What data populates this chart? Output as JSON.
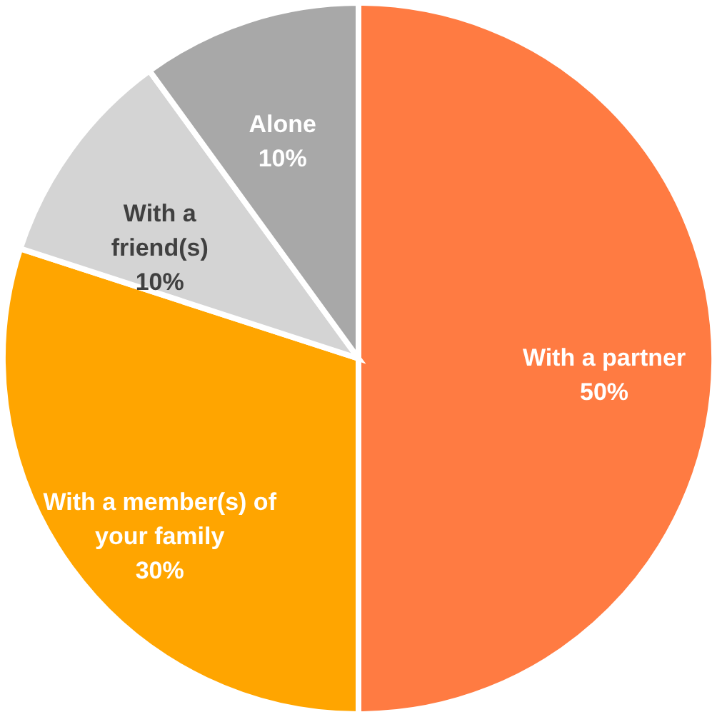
{
  "chart_data": {
    "type": "pie",
    "categories": [
      "With a partner",
      "With a member(s) of your family",
      "With a friend(s)",
      "Alone"
    ],
    "values": [
      50,
      30,
      10,
      10
    ],
    "value_labels": [
      "50%",
      "30%",
      "10%",
      "10%"
    ],
    "colors": [
      "#ff7b42",
      "#ffa500",
      "#d4d4d4",
      "#a8a8a8"
    ],
    "legend": false
  }
}
